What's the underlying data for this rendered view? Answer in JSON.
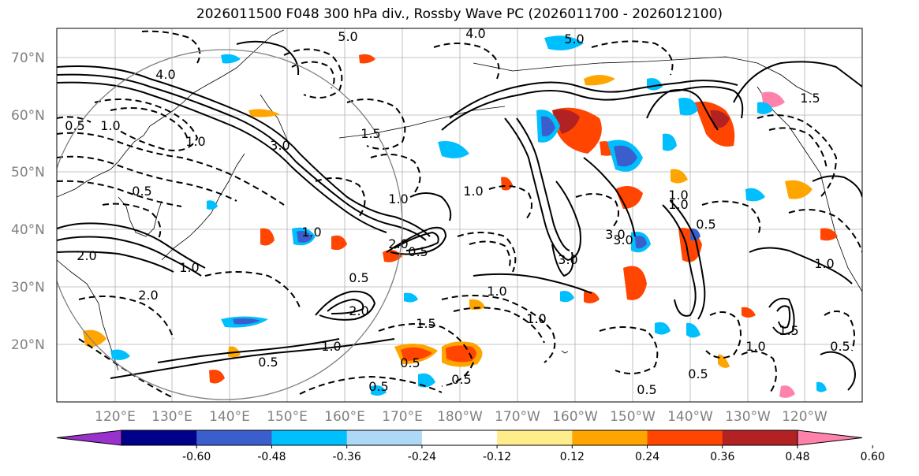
{
  "title": "2026011500 F048 300 hPa div., Rossby Wave PC (2026011700 - 2026012100)",
  "lat_labels": [
    "70°N",
    "60°N",
    "50°N",
    "40°N",
    "30°N",
    "20°N"
  ],
  "lon_labels": [
    "120°E",
    "130°E",
    "140°E",
    "150°E",
    "160°E",
    "170°E",
    "180°W",
    "170°W",
    "160°W",
    "150°W",
    "140°W",
    "130°W",
    "120°W"
  ],
  "colorbar": {
    "colors": [
      "#9932cc",
      "#00008b",
      "#3a5fcd",
      "#00bfff",
      "#add8f6",
      "#ffffff",
      "#ffec8b",
      "#ffa500",
      "#ff4500",
      "#b22222",
      "#ff82ab"
    ],
    "tick_labels": [
      "-0.60",
      "-0.48",
      "-0.36",
      "-0.24",
      "-0.12",
      "0.12",
      "0.24",
      "0.36",
      "0.48",
      "0.60"
    ]
  },
  "contour_labels": [
    "5.0",
    "4.0",
    "5.0",
    "4.0",
    "3.0",
    "1.0",
    "3.0",
    "1.0",
    "0.5",
    "0.5",
    "1.0",
    "2.0",
    "1.5",
    "0.5",
    "1.0",
    "2.0",
    "0.5",
    "1.0",
    "0.5",
    "1.0",
    "1.5",
    "1.0",
    "3.0",
    "0.5",
    "2.0",
    "1.0",
    "2.0",
    "1.0",
    "0.5",
    "1.0",
    "0.5",
    "0.5",
    "1.0",
    "0.5",
    "3.0",
    "1.0",
    "1.5",
    "1.0",
    "1.5",
    "1.0",
    "0.5",
    "0.5"
  ]
}
